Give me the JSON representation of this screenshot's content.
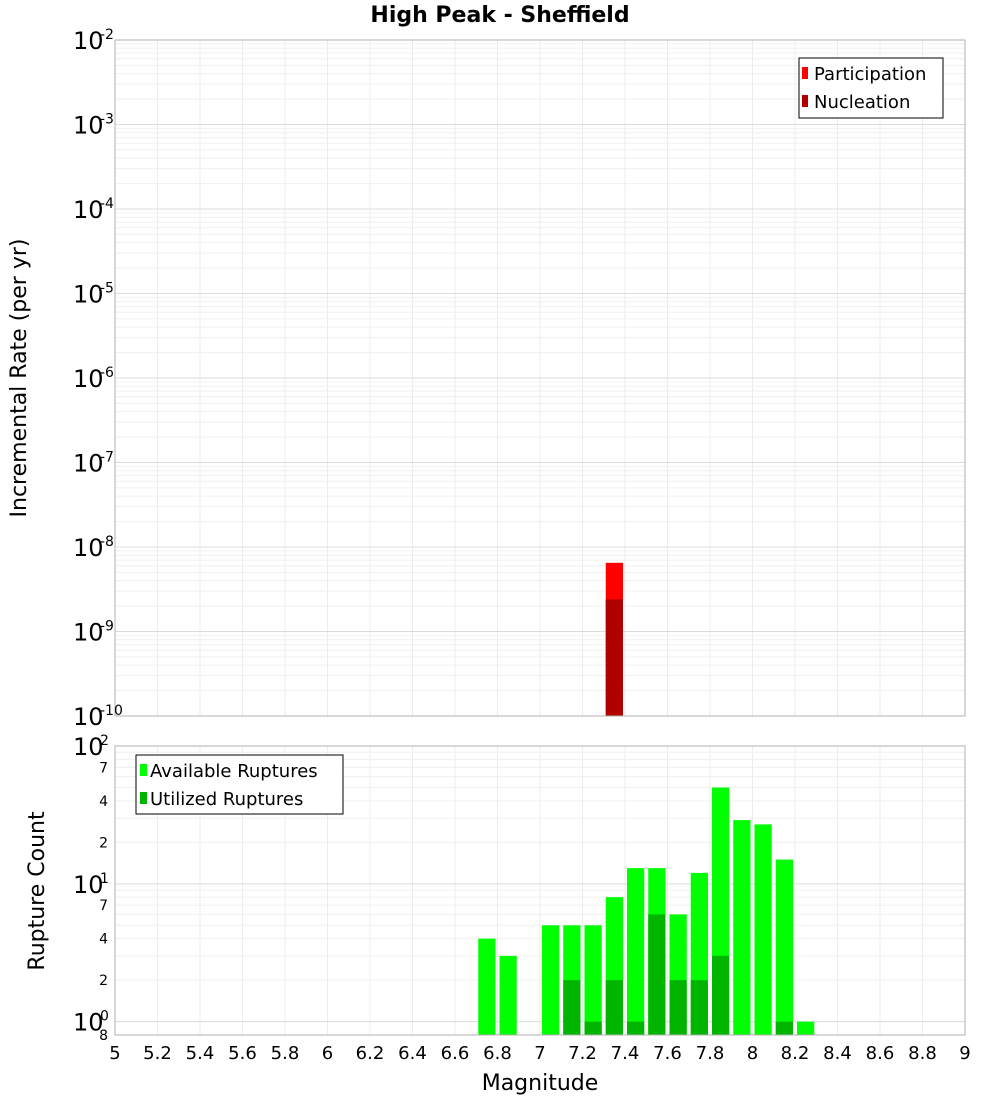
{
  "chart_data": [
    {
      "type": "bar",
      "title": "High Peak - Sheffield",
      "xlabel": "Magnitude",
      "ylabel": "Incremental Rate (per yr)",
      "yscale": "log",
      "xlim": [
        5,
        9
      ],
      "ylim": [
        1e-10,
        0.01
      ],
      "y_decade_ticks": [
        {
          "base": "10",
          "exp": "-2",
          "v": 0.01
        },
        {
          "base": "10",
          "exp": "-3",
          "v": 0.001
        },
        {
          "base": "10",
          "exp": "-4",
          "v": 0.0001
        },
        {
          "base": "10",
          "exp": "-5",
          "v": 1e-05
        },
        {
          "base": "10",
          "exp": "-6",
          "v": 1e-06
        },
        {
          "base": "10",
          "exp": "-7",
          "v": 1e-07
        },
        {
          "base": "10",
          "exp": "-8",
          "v": 1e-08
        },
        {
          "base": "10",
          "exp": "-9",
          "v": 1e-09
        },
        {
          "base": "10",
          "exp": "-10",
          "v": 1e-10
        }
      ],
      "legend": [
        {
          "label": "Participation",
          "color": "#ff0000"
        },
        {
          "label": "Nucleation",
          "color": "#b00000"
        }
      ],
      "legend_position": "top-right",
      "bar_width": 0.1,
      "series": [
        {
          "name": "Participation",
          "color": "#ff0000",
          "points": [
            {
              "x": 7.35,
              "y": 6.5e-09
            }
          ]
        },
        {
          "name": "Nucleation",
          "color": "#b00000",
          "points": [
            {
              "x": 7.35,
              "y": 2.4e-09
            }
          ]
        }
      ]
    },
    {
      "type": "bar",
      "xlabel": "Magnitude",
      "ylabel": "Rupture Count",
      "yscale": "log",
      "xlim": [
        5,
        9
      ],
      "ylim": [
        0.8,
        100
      ],
      "x_ticks": [
        "5",
        "5.2",
        "5.4",
        "5.6",
        "5.8",
        "6",
        "6.2",
        "6.4",
        "6.6",
        "6.8",
        "7",
        "7.2",
        "7.4",
        "7.6",
        "7.8",
        "8",
        "8.2",
        "8.4",
        "8.6",
        "8.8",
        "9"
      ],
      "y_decade_ticks": [
        {
          "base": "10",
          "exp": "2",
          "v": 100
        },
        {
          "base": "10",
          "exp": "1",
          "v": 10
        },
        {
          "base": "10",
          "exp": "0",
          "v": 1
        }
      ],
      "y_minor_ticks": [
        {
          "label": "7",
          "v": 70
        },
        {
          "label": "4",
          "v": 40
        },
        {
          "label": "2",
          "v": 20
        },
        {
          "label": "7",
          "v": 7
        },
        {
          "label": "4",
          "v": 4
        },
        {
          "label": "2",
          "v": 2
        },
        {
          "label": "8",
          "v": 0.8
        }
      ],
      "legend": [
        {
          "label": "Available Ruptures",
          "color": "#00ff00"
        },
        {
          "label": "Utilized Ruptures",
          "color": "#00b400"
        }
      ],
      "legend_position": "top-left",
      "bar_width": 0.1,
      "series": [
        {
          "name": "Available Ruptures",
          "color": "#00ff00",
          "points": [
            {
              "x": 6.75,
              "y": 4
            },
            {
              "x": 6.85,
              "y": 3
            },
            {
              "x": 7.05,
              "y": 5
            },
            {
              "x": 7.15,
              "y": 5
            },
            {
              "x": 7.25,
              "y": 5
            },
            {
              "x": 7.35,
              "y": 8
            },
            {
              "x": 7.45,
              "y": 13
            },
            {
              "x": 7.55,
              "y": 13
            },
            {
              "x": 7.65,
              "y": 6
            },
            {
              "x": 7.75,
              "y": 12
            },
            {
              "x": 7.85,
              "y": 50
            },
            {
              "x": 7.95,
              "y": 29
            },
            {
              "x": 8.05,
              "y": 27
            },
            {
              "x": 8.15,
              "y": 15
            },
            {
              "x": 8.25,
              "y": 1
            }
          ]
        },
        {
          "name": "Utilized Ruptures",
          "color": "#00b400",
          "points": [
            {
              "x": 7.15,
              "y": 2
            },
            {
              "x": 7.25,
              "y": 1
            },
            {
              "x": 7.35,
              "y": 2
            },
            {
              "x": 7.45,
              "y": 1
            },
            {
              "x": 7.55,
              "y": 6
            },
            {
              "x": 7.65,
              "y": 2
            },
            {
              "x": 7.75,
              "y": 2
            },
            {
              "x": 7.85,
              "y": 3
            },
            {
              "x": 8.15,
              "y": 1
            }
          ]
        }
      ]
    }
  ]
}
